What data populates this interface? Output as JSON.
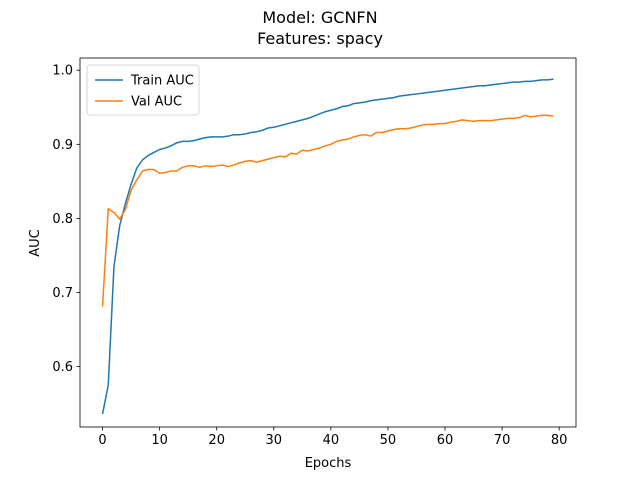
{
  "chart_data": {
    "type": "line",
    "title": "Model: GCNFN",
    "subtitle": "Features: spacy",
    "xlabel": "Epochs",
    "ylabel": "AUC",
    "xlim": [
      -3.95,
      82.95
    ],
    "ylim": [
      0.5185,
      1.0165
    ],
    "xticks": [
      0,
      10,
      20,
      30,
      40,
      50,
      60,
      70,
      80
    ],
    "yticks": [
      0.6,
      0.7,
      0.8,
      0.9,
      1.0
    ],
    "ytick_labels": [
      "0.6",
      "0.7",
      "0.8",
      "0.9",
      "1.0"
    ],
    "grid": false,
    "legend_position": "top-left",
    "x": [
      0,
      1,
      2,
      3,
      4,
      5,
      6,
      7,
      8,
      9,
      10,
      11,
      12,
      13,
      14,
      15,
      16,
      17,
      18,
      19,
      20,
      21,
      22,
      23,
      24,
      25,
      26,
      27,
      28,
      29,
      30,
      31,
      32,
      33,
      34,
      35,
      36,
      37,
      38,
      39,
      40,
      41,
      42,
      43,
      44,
      45,
      46,
      47,
      48,
      49,
      50,
      51,
      52,
      53,
      54,
      55,
      56,
      57,
      58,
      59,
      60,
      61,
      62,
      63,
      64,
      65,
      66,
      67,
      68,
      69,
      70,
      71,
      72,
      73,
      74,
      75,
      76,
      77,
      78,
      79
    ],
    "series": [
      {
        "name": "Train AUC",
        "color": "#1f77b4",
        "values": [
          0.536,
          0.575,
          0.735,
          0.79,
          0.82,
          0.846,
          0.868,
          0.879,
          0.885,
          0.889,
          0.893,
          0.895,
          0.898,
          0.902,
          0.904,
          0.904,
          0.905,
          0.907,
          0.909,
          0.91,
          0.91,
          0.91,
          0.911,
          0.913,
          0.913,
          0.914,
          0.916,
          0.917,
          0.919,
          0.922,
          0.923,
          0.925,
          0.927,
          0.929,
          0.931,
          0.933,
          0.935,
          0.938,
          0.941,
          0.944,
          0.946,
          0.948,
          0.951,
          0.952,
          0.955,
          0.956,
          0.957,
          0.959,
          0.96,
          0.961,
          0.962,
          0.963,
          0.965,
          0.966,
          0.967,
          0.968,
          0.969,
          0.97,
          0.971,
          0.972,
          0.973,
          0.974,
          0.975,
          0.976,
          0.977,
          0.978,
          0.979,
          0.979,
          0.98,
          0.981,
          0.982,
          0.983,
          0.984,
          0.984,
          0.985,
          0.985,
          0.986,
          0.987,
          0.987,
          0.988
        ]
      },
      {
        "name": "Val AUC",
        "color": "#ff7f0e",
        "values": [
          0.681,
          0.813,
          0.808,
          0.799,
          0.812,
          0.838,
          0.852,
          0.864,
          0.866,
          0.866,
          0.861,
          0.862,
          0.864,
          0.864,
          0.869,
          0.871,
          0.871,
          0.869,
          0.871,
          0.87,
          0.871,
          0.872,
          0.87,
          0.872,
          0.875,
          0.877,
          0.878,
          0.876,
          0.878,
          0.88,
          0.882,
          0.884,
          0.883,
          0.888,
          0.887,
          0.892,
          0.891,
          0.893,
          0.895,
          0.898,
          0.9,
          0.904,
          0.906,
          0.907,
          0.91,
          0.912,
          0.913,
          0.911,
          0.916,
          0.916,
          0.918,
          0.92,
          0.921,
          0.921,
          0.922,
          0.924,
          0.926,
          0.927,
          0.927,
          0.928,
          0.928,
          0.93,
          0.931,
          0.933,
          0.932,
          0.931,
          0.932,
          0.932,
          0.932,
          0.933,
          0.934,
          0.935,
          0.935,
          0.936,
          0.939,
          0.937,
          0.938,
          0.939,
          0.939,
          0.938
        ]
      }
    ]
  }
}
